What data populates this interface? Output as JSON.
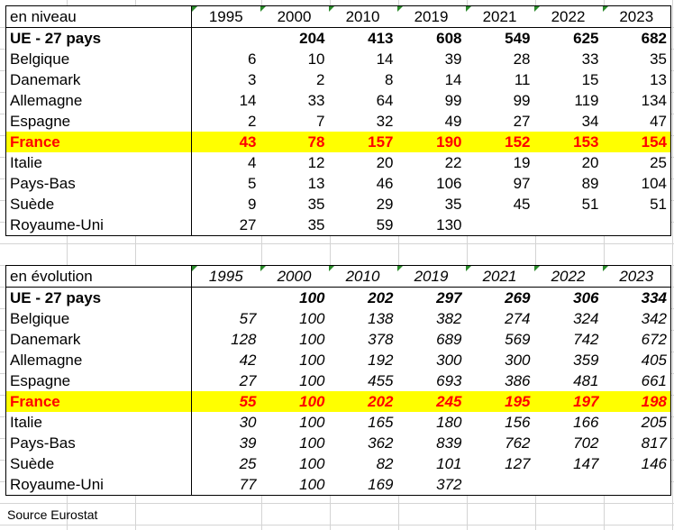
{
  "table_niveau": {
    "label": "en niveau",
    "years": [
      "1995",
      "2000",
      "2010",
      "2019",
      "2021",
      "2022",
      "2023"
    ],
    "rows": [
      {
        "country": "UE - 27 pays",
        "values": [
          "",
          "204",
          "413",
          "608",
          "549",
          "625",
          "682"
        ],
        "style": "bold"
      },
      {
        "country": "Belgique",
        "values": [
          "6",
          "10",
          "14",
          "39",
          "28",
          "33",
          "35"
        ]
      },
      {
        "country": "Danemark",
        "values": [
          "3",
          "2",
          "8",
          "14",
          "11",
          "15",
          "13"
        ]
      },
      {
        "country": "Allemagne",
        "values": [
          "14",
          "33",
          "64",
          "99",
          "99",
          "119",
          "134"
        ]
      },
      {
        "country": "Espagne",
        "values": [
          "2",
          "7",
          "32",
          "49",
          "27",
          "34",
          "47"
        ]
      },
      {
        "country": "France",
        "values": [
          "43",
          "78",
          "157",
          "190",
          "152",
          "153",
          "154"
        ],
        "style": "france"
      },
      {
        "country": "Italie",
        "values": [
          "4",
          "12",
          "20",
          "22",
          "19",
          "20",
          "25"
        ]
      },
      {
        "country": "Pays-Bas",
        "values": [
          "5",
          "13",
          "46",
          "106",
          "97",
          "89",
          "104"
        ]
      },
      {
        "country": "Suède",
        "values": [
          "9",
          "35",
          "29",
          "35",
          "45",
          "51",
          "51"
        ]
      },
      {
        "country": "Royaume-Uni",
        "values": [
          "27",
          "35",
          "59",
          "130",
          "",
          "",
          ""
        ]
      }
    ]
  },
  "table_evolution": {
    "label": "en évolution",
    "years": [
      "1995",
      "2000",
      "2010",
      "2019",
      "2021",
      "2022",
      "2023"
    ],
    "rows": [
      {
        "country": "UE - 27 pays",
        "values": [
          "",
          "100",
          "202",
          "297",
          "269",
          "306",
          "334"
        ],
        "style": "bold"
      },
      {
        "country": "Belgique",
        "values": [
          "57",
          "100",
          "138",
          "382",
          "274",
          "324",
          "342"
        ]
      },
      {
        "country": "Danemark",
        "values": [
          "128",
          "100",
          "378",
          "689",
          "569",
          "742",
          "672"
        ]
      },
      {
        "country": "Allemagne",
        "values": [
          "42",
          "100",
          "192",
          "300",
          "300",
          "359",
          "405"
        ]
      },
      {
        "country": "Espagne",
        "values": [
          "27",
          "100",
          "455",
          "693",
          "386",
          "481",
          "661"
        ]
      },
      {
        "country": "France",
        "values": [
          "55",
          "100",
          "202",
          "245",
          "195",
          "197",
          "198"
        ],
        "style": "france"
      },
      {
        "country": "Italie",
        "values": [
          "30",
          "100",
          "165",
          "180",
          "156",
          "166",
          "205"
        ]
      },
      {
        "country": "Pays-Bas",
        "values": [
          "39",
          "100",
          "362",
          "839",
          "762",
          "702",
          "817"
        ]
      },
      {
        "country": "Suède",
        "values": [
          "25",
          "100",
          "82",
          "101",
          "127",
          "147",
          "146"
        ]
      },
      {
        "country": "Royaume-Uni",
        "values": [
          "77",
          "100",
          "169",
          "372",
          "",
          "",
          ""
        ]
      }
    ]
  },
  "source": "Source Eurostat",
  "colors": {
    "highlight": "#ffff00",
    "france_text": "#ff0000"
  }
}
